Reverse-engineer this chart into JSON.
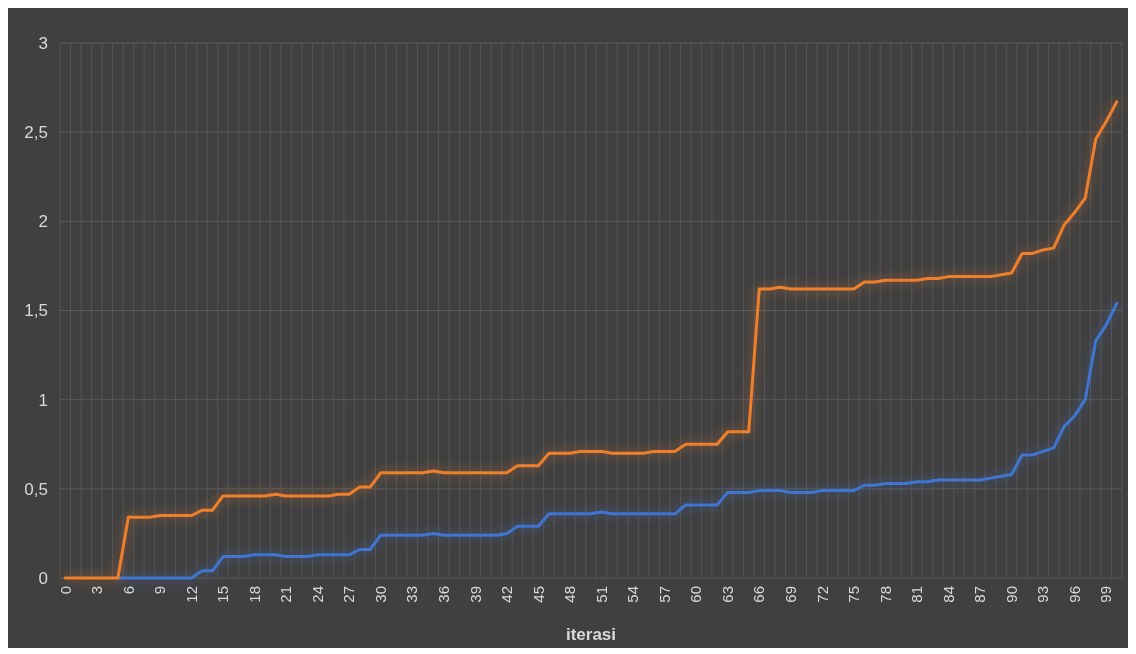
{
  "chart_data": {
    "type": "line",
    "xlabel": "iterasi",
    "categories": [
      "0",
      null,
      null,
      "3",
      null,
      null,
      "6",
      null,
      null,
      "9",
      null,
      null,
      "12",
      null,
      null,
      "15",
      null,
      null,
      "18",
      null,
      null,
      "21",
      null,
      null,
      "24",
      null,
      null,
      "27",
      null,
      null,
      "30",
      null,
      null,
      "33",
      null,
      null,
      "36",
      null,
      null,
      "39",
      null,
      null,
      "42",
      null,
      null,
      "45",
      null,
      null,
      "48",
      null,
      null,
      "51",
      null,
      null,
      "54",
      null,
      null,
      "57",
      null,
      null,
      "60",
      null,
      null,
      "63",
      null,
      null,
      "66",
      null,
      null,
      "69",
      null,
      null,
      "72",
      null,
      null,
      "75",
      null,
      null,
      "78",
      null,
      null,
      "81",
      null,
      null,
      "84",
      null,
      null,
      "87",
      null,
      null,
      "90",
      null,
      null,
      "93",
      null,
      null,
      "96",
      null,
      null,
      "99",
      null
    ],
    "series": [
      {
        "color": "#f07f2a",
        "values": [
          0,
          0,
          0,
          0,
          0,
          0,
          0.34,
          0.34,
          0.34,
          0.35,
          0.35,
          0.35,
          0.35,
          0.38,
          0.38,
          0.46,
          0.46,
          0.46,
          0.46,
          0.46,
          0.47,
          0.46,
          0.46,
          0.46,
          0.46,
          0.46,
          0.47,
          0.47,
          0.51,
          0.51,
          0.59,
          0.59,
          0.59,
          0.59,
          0.59,
          0.6,
          0.59,
          0.59,
          0.59,
          0.59,
          0.59,
          0.59,
          0.59,
          0.63,
          0.63,
          0.63,
          0.7,
          0.7,
          0.7,
          0.71,
          0.71,
          0.71,
          0.7,
          0.7,
          0.7,
          0.7,
          0.71,
          0.71,
          0.71,
          0.75,
          0.75,
          0.75,
          0.75,
          0.82,
          0.82,
          0.82,
          1.62,
          1.62,
          1.63,
          1.62,
          1.62,
          1.62,
          1.62,
          1.62,
          1.62,
          1.62,
          1.66,
          1.66,
          1.67,
          1.67,
          1.67,
          1.67,
          1.68,
          1.68,
          1.69,
          1.69,
          1.69,
          1.69,
          1.69,
          1.7,
          1.71,
          1.82,
          1.82,
          1.84,
          1.85,
          1.98,
          2.05,
          2.13,
          2.46,
          2.56,
          2.67
        ]
      },
      {
        "color": "#3f74d1",
        "values": [
          null,
          null,
          null,
          null,
          null,
          0,
          0,
          0,
          0,
          0,
          0,
          0,
          0,
          0.04,
          0.04,
          0.12,
          0.12,
          0.12,
          0.13,
          0.13,
          0.13,
          0.12,
          0.12,
          0.12,
          0.13,
          0.13,
          0.13,
          0.13,
          0.16,
          0.16,
          0.24,
          0.24,
          0.24,
          0.24,
          0.24,
          0.25,
          0.24,
          0.24,
          0.24,
          0.24,
          0.24,
          0.24,
          0.25,
          0.29,
          0.29,
          0.29,
          0.36,
          0.36,
          0.36,
          0.36,
          0.36,
          0.37,
          0.36,
          0.36,
          0.36,
          0.36,
          0.36,
          0.36,
          0.36,
          0.41,
          0.41,
          0.41,
          0.41,
          0.48,
          0.48,
          0.48,
          0.49,
          0.49,
          0.49,
          0.48,
          0.48,
          0.48,
          0.49,
          0.49,
          0.49,
          0.49,
          0.52,
          0.52,
          0.53,
          0.53,
          0.53,
          0.54,
          0.54,
          0.55,
          0.55,
          0.55,
          0.55,
          0.55,
          0.56,
          0.57,
          0.58,
          0.69,
          0.69,
          0.71,
          0.73,
          0.85,
          0.91,
          1.0,
          1.33,
          1.42,
          1.54
        ]
      }
    ],
    "ylim": [
      0,
      3
    ],
    "yticks": [
      0,
      {
        "value": 0.5,
        "label": "0,5"
      },
      1,
      {
        "value": 1.5,
        "label": "1,5"
      },
      2,
      {
        "value": 2.5,
        "label": "2,5"
      },
      3
    ],
    "grid": true
  }
}
